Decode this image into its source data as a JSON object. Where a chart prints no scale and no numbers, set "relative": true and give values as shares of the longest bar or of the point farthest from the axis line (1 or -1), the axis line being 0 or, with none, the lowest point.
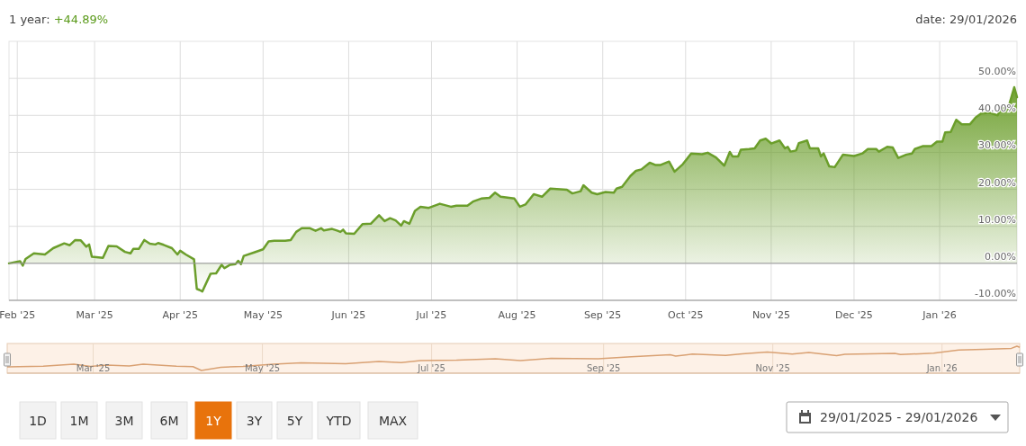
{
  "chart_data": [
    {
      "type": "area",
      "annotations": [
        "1 year: +44.89%",
        "date: 29/01/2026",
        "1D",
        "1M",
        "3M",
        "6M",
        "1Y",
        "3Y",
        "5Y",
        "YTD",
        "MAX",
        "29/01/2025 - 29/01/2026"
      ],
      "x": [
        "2025-01-29",
        "2025-02-02",
        "2025-02-03",
        "2025-02-04",
        "2025-02-07",
        "2025-02-11",
        "2025-02-14",
        "2025-02-18",
        "2025-02-20",
        "2025-02-22",
        "2025-02-24",
        "2025-02-26",
        "2025-02-27",
        "2025-02-28",
        "2025-03-04",
        "2025-03-06",
        "2025-03-09",
        "2025-03-12",
        "2025-03-14",
        "2025-03-15",
        "2025-03-17",
        "2025-03-19",
        "2025-03-21",
        "2025-03-23",
        "2025-03-24",
        "2025-03-26",
        "2025-03-29",
        "2025-03-31",
        "2025-04-01",
        "2025-04-03",
        "2025-04-06",
        "2025-04-07",
        "2025-04-08",
        "2025-04-09",
        "2025-04-12",
        "2025-04-14",
        "2025-04-16",
        "2025-04-17",
        "2025-04-19",
        "2025-04-21",
        "2025-04-22",
        "2025-04-23",
        "2025-04-24",
        "2025-04-28",
        "2025-05-01",
        "2025-05-03",
        "2025-05-05",
        "2025-05-09",
        "2025-05-11",
        "2025-05-13",
        "2025-05-15",
        "2025-05-18",
        "2025-05-20",
        "2025-05-22",
        "2025-05-23",
        "2025-05-26",
        "2025-05-28",
        "2025-05-29",
        "2025-05-30",
        "2025-05-31",
        "2025-06-03",
        "2025-06-06",
        "2025-06-09",
        "2025-06-12",
        "2025-06-14",
        "2025-06-16",
        "2025-06-18",
        "2025-06-20",
        "2025-06-21",
        "2025-06-23",
        "2025-06-25",
        "2025-06-27",
        "2025-06-30",
        "2025-07-04",
        "2025-07-08",
        "2025-07-10",
        "2025-07-14",
        "2025-07-16",
        "2025-07-19",
        "2025-07-22",
        "2025-07-24",
        "2025-07-26",
        "2025-07-31",
        "2025-08-02",
        "2025-08-04",
        "2025-08-07",
        "2025-08-10",
        "2025-08-13",
        "2025-08-19",
        "2025-08-21",
        "2025-08-24",
        "2025-08-25",
        "2025-08-28",
        "2025-08-30",
        "2025-09-02",
        "2025-09-05",
        "2025-09-06",
        "2025-09-08",
        "2025-09-11",
        "2025-09-13",
        "2025-09-15",
        "2025-09-18",
        "2025-09-20",
        "2025-09-22",
        "2025-09-25",
        "2025-09-27",
        "2025-09-30",
        "2025-10-03",
        "2025-10-07",
        "2025-10-09",
        "2025-10-12",
        "2025-10-15",
        "2025-10-17",
        "2025-10-18",
        "2025-10-20",
        "2025-10-21",
        "2025-10-24",
        "2025-10-26",
        "2025-10-28",
        "2025-10-30",
        "2025-11-01",
        "2025-11-04",
        "2025-11-06",
        "2025-11-07",
        "2025-11-08",
        "2025-11-10",
        "2025-11-11",
        "2025-11-14",
        "2025-11-15",
        "2025-11-18",
        "2025-11-19",
        "2025-11-20",
        "2025-11-22",
        "2025-11-24",
        "2025-11-27",
        "2025-12-01",
        "2025-12-04",
        "2025-12-06",
        "2025-12-09",
        "2025-12-10",
        "2025-12-13",
        "2025-12-15",
        "2025-12-17",
        "2025-12-19",
        "2025-12-20",
        "2025-12-22",
        "2025-12-23",
        "2025-12-26",
        "2025-12-29",
        "2025-12-31",
        "2026-01-02",
        "2026-01-03",
        "2026-01-05",
        "2026-01-07",
        "2026-01-09",
        "2026-01-12",
        "2026-01-14",
        "2026-01-16",
        "2026-01-19",
        "2026-01-22",
        "2026-01-23",
        "2026-01-26",
        "2026-01-28",
        "2026-01-29"
      ],
      "series": [
        {
          "color": "#6b9e2b",
          "values": [
            0,
            0.6,
            -0.6,
            1.2,
            2.7,
            2.4,
            4.1,
            5.4,
            4.9,
            6.3,
            6.2,
            4.5,
            5.1,
            1.8,
            1.5,
            4.7,
            4.6,
            3.1,
            2.7,
            3.9,
            3.9,
            6.3,
            5.3,
            5.1,
            5.5,
            5.0,
            4.1,
            2.4,
            3.4,
            2.4,
            1.1,
            -6.9,
            -7.2,
            -7.6,
            -2.8,
            -2.7,
            -0.4,
            -1.3,
            -0.4,
            -0.2,
            0.7,
            -0.2,
            2.0,
            3.0,
            3.8,
            5.9,
            6.1,
            6.1,
            6.3,
            8.5,
            9.5,
            9.5,
            8.8,
            9.5,
            8.9,
            9.3,
            8.8,
            8.5,
            9.1,
            8.1,
            8.0,
            10.6,
            10.7,
            13.0,
            11.4,
            12.2,
            11.6,
            10.2,
            11.4,
            10.7,
            14.2,
            15.3,
            15.0,
            16.1,
            15.3,
            15.6,
            15.6,
            16.7,
            17.5,
            17.7,
            19.1,
            18.0,
            17.5,
            15.3,
            15.9,
            18.7,
            18.0,
            20.2,
            19.9,
            18.9,
            19.5,
            21.1,
            19.1,
            18.7,
            19.3,
            19.1,
            20.2,
            20.7,
            23.6,
            25.0,
            25.4,
            27.2,
            26.6,
            26.6,
            27.5,
            24.8,
            26.8,
            29.7,
            29.5,
            29.9,
            28.6,
            26.4,
            30.1,
            28.9,
            28.9,
            30.7,
            30.9,
            31.1,
            33.2,
            33.7,
            32.4,
            33.2,
            31.1,
            31.5,
            30.2,
            30.5,
            32.5,
            33.2,
            31.1,
            31.1,
            28.9,
            29.7,
            26.2,
            26.0,
            29.4,
            29.0,
            29.7,
            30.9,
            30.9,
            30.2,
            31.5,
            31.3,
            28.5,
            29.1,
            29.4,
            29.7,
            30.9,
            31.7,
            31.7,
            32.9,
            32.9,
            35.4,
            35.5,
            38.8,
            37.6,
            37.6,
            39.4,
            40.5,
            40.7,
            40.0,
            41.6,
            42.4,
            47.6,
            44.89
          ]
        }
      ],
      "xlim": [
        "2025-01-29",
        "2026-01-29"
      ],
      "xticks": [
        {
          "value": "2025-02-01",
          "label": "Feb '25"
        },
        {
          "value": "2025-03-01",
          "label": "Mar '25"
        },
        {
          "value": "2025-04-01",
          "label": "Apr '25"
        },
        {
          "value": "2025-05-01",
          "label": "May '25"
        },
        {
          "value": "2025-06-01",
          "label": "Jun '25"
        },
        {
          "value": "2025-07-01",
          "label": "Jul '25"
        },
        {
          "value": "2025-08-01",
          "label": "Aug '25"
        },
        {
          "value": "2025-09-01",
          "label": "Sep '25"
        },
        {
          "value": "2025-10-01",
          "label": "Oct '25"
        },
        {
          "value": "2025-11-01",
          "label": "Nov '25"
        },
        {
          "value": "2025-12-01",
          "label": "Dec '25"
        },
        {
          "value": "2026-01-01",
          "label": "Jan '26"
        }
      ],
      "ylim": [
        -10,
        60
      ],
      "yticks": [
        {
          "value": -10,
          "label": "-10.00%"
        },
        {
          "value": 0,
          "label": "0.00%"
        },
        {
          "value": 10,
          "label": "10.00%"
        },
        {
          "value": 20,
          "label": "20.00%"
        },
        {
          "value": 30,
          "label": "30.00%"
        },
        {
          "value": 40,
          "label": "40.00%"
        },
        {
          "value": 50,
          "label": "50.00%"
        }
      ],
      "ref_lines": [
        {
          "axis": "y",
          "value": 0,
          "color": "#999999"
        }
      ],
      "grid": true
    },
    {
      "type": "line",
      "relative": true,
      "tick_labels": "x",
      "x": [
        "2025-01-29",
        "2025-02-11",
        "2025-02-22",
        "2025-02-28",
        "2025-03-06",
        "2025-03-14",
        "2025-03-19",
        "2025-03-31",
        "2025-04-06",
        "2025-04-09",
        "2025-04-16",
        "2025-04-24",
        "2025-05-05",
        "2025-05-15",
        "2025-05-31",
        "2025-06-12",
        "2025-06-20",
        "2025-06-27",
        "2025-07-10",
        "2025-07-24",
        "2025-08-02",
        "2025-08-13",
        "2025-08-30",
        "2025-09-11",
        "2025-09-25",
        "2025-09-27",
        "2025-10-03",
        "2025-10-15",
        "2025-10-21",
        "2025-10-30",
        "2025-11-08",
        "2025-11-14",
        "2025-11-24",
        "2025-11-27",
        "2025-12-15",
        "2025-12-17",
        "2025-12-29",
        "2026-01-07",
        "2026-01-16",
        "2026-01-26",
        "2026-01-28",
        "2026-01-29"
      ],
      "series": [
        {
          "color": "#d9a173",
          "values": [
            0.23,
            0.26,
            0.33,
            0.25,
            0.3,
            0.27,
            0.33,
            0.26,
            0.24,
            0.1,
            0.22,
            0.25,
            0.33,
            0.38,
            0.35,
            0.43,
            0.39,
            0.47,
            0.48,
            0.53,
            0.47,
            0.55,
            0.53,
            0.61,
            0.68,
            0.63,
            0.71,
            0.66,
            0.72,
            0.78,
            0.71,
            0.77,
            0.65,
            0.7,
            0.73,
            0.69,
            0.74,
            0.86,
            0.88,
            0.92,
            1,
            0.96
          ]
        }
      ],
      "xlim": [
        "2025-01-29",
        "2026-01-29"
      ],
      "xticks": [
        {
          "value": "2025-03-01",
          "label": "Mar '25"
        },
        {
          "value": "2025-05-01",
          "label": "May '25"
        },
        {
          "value": "2025-07-01",
          "label": "Jul '25"
        },
        {
          "value": "2025-09-01",
          "label": "Sep '25"
        },
        {
          "value": "2025-11-01",
          "label": "Nov '25"
        },
        {
          "value": "2026-01-01",
          "label": "Jan '26"
        }
      ],
      "grid": "x"
    }
  ]
}
